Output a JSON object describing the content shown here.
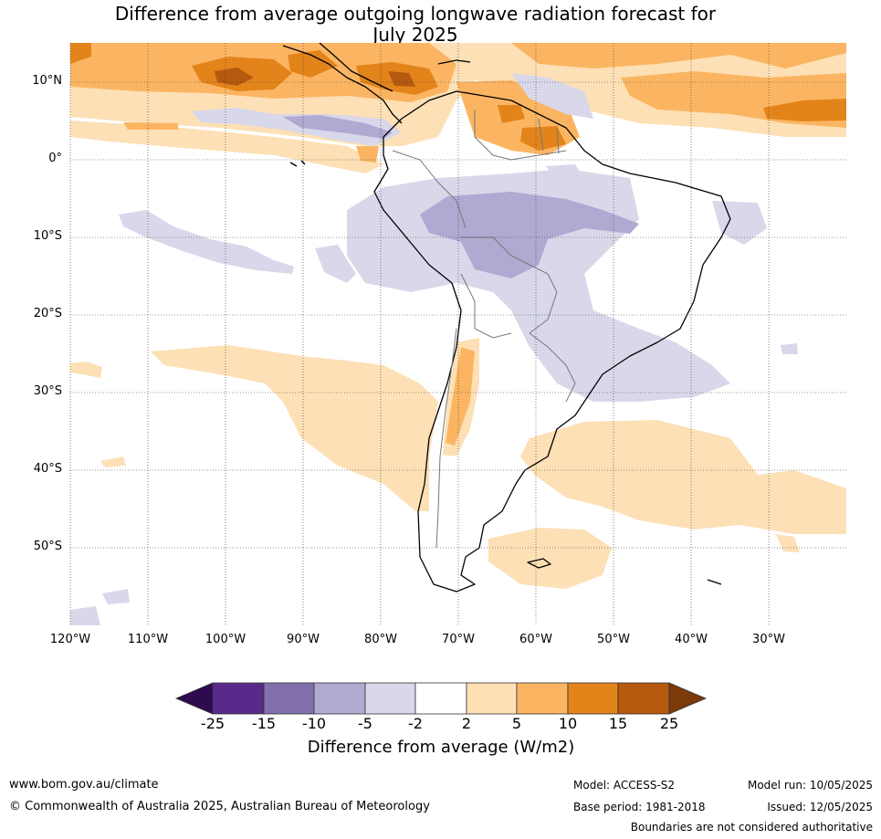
{
  "title": {
    "line1": "Difference from average outgoing longwave radiation forecast for",
    "line2": "July 2025"
  },
  "axes": {
    "lat_labels": [
      "10°N",
      "0°",
      "10°S",
      "20°S",
      "30°S",
      "40°S",
      "50°S"
    ],
    "lon_labels": [
      "120°W",
      "110°W",
      "100°W",
      "90°W",
      "80°W",
      "70°W",
      "60°W",
      "50°W",
      "40°W",
      "30°W"
    ]
  },
  "colorbar": {
    "title": "Difference from average (W/m2)",
    "tick_labels": [
      "-25",
      "-15",
      "-10",
      "-5",
      "-2",
      "2",
      "5",
      "10",
      "15",
      "25"
    ],
    "colors": [
      "#2e0a4f",
      "#5a2a8a",
      "#8170ad",
      "#b0a9d2",
      "#d8d8ea",
      "#ffffff",
      "#fde0b5",
      "#fbb562",
      "#e3841b",
      "#b5590e",
      "#7c3a0a"
    ]
  },
  "footer": {
    "website": "www.bom.gov.au/climate",
    "copyright": "© Commonwealth of Australia 2025, Australian Bureau of Meteorology",
    "model": "Model: ACCESS-S2",
    "base_period": "Base period: 1981-2018",
    "model_run": "Model run: 10/05/2025",
    "issued": "Issued: 12/05/2025",
    "disclaimer": "Boundaries are not considered authoritative"
  }
}
